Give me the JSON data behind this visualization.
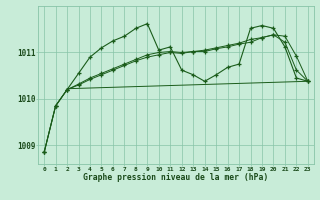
{
  "title": "Graphe pression niveau de la mer (hPa)",
  "bg_color": "#c8ecd8",
  "grid_color": "#88c4a8",
  "line_color": "#1a5c1a",
  "text_color": "#1a4a1a",
  "xlim": [
    -0.5,
    23.5
  ],
  "ylim": [
    1008.6,
    1012.0
  ],
  "yticks": [
    1009,
    1010,
    1011
  ],
  "xticks": [
    0,
    1,
    2,
    3,
    4,
    5,
    6,
    7,
    8,
    9,
    10,
    11,
    12,
    13,
    14,
    15,
    16,
    17,
    18,
    19,
    20,
    21,
    22,
    23
  ],
  "line1_x": [
    0,
    1,
    2,
    3,
    4,
    5,
    6,
    7,
    8,
    9,
    10,
    11,
    12,
    13,
    14,
    15,
    16,
    17,
    18,
    19,
    20,
    21,
    22,
    23
  ],
  "line1_y": [
    1008.85,
    1009.85,
    1010.2,
    1010.55,
    1010.9,
    1011.1,
    1011.25,
    1011.35,
    1011.52,
    1011.62,
    1011.05,
    1011.12,
    1010.62,
    1010.52,
    1010.38,
    1010.52,
    1010.68,
    1010.75,
    1011.52,
    1011.58,
    1011.52,
    1011.12,
    1010.45,
    1010.38
  ],
  "line2_x": [
    2,
    23
  ],
  "line2_y": [
    1010.22,
    1010.38
  ],
  "line3_x": [
    0,
    1,
    2,
    3,
    4,
    5,
    6,
    7,
    8,
    9,
    10,
    11,
    12,
    13,
    14,
    15,
    16,
    17,
    18,
    19,
    20,
    21,
    22,
    23
  ],
  "line3_y": [
    1008.85,
    1009.85,
    1010.2,
    1010.3,
    1010.42,
    1010.52,
    1010.62,
    1010.72,
    1010.82,
    1010.9,
    1010.95,
    1011.0,
    1010.98,
    1011.02,
    1011.05,
    1011.1,
    1011.15,
    1011.2,
    1011.28,
    1011.32,
    1011.38,
    1011.35,
    1010.92,
    1010.38
  ],
  "line4_x": [
    0,
    1,
    2,
    3,
    4,
    5,
    6,
    7,
    8,
    9,
    10,
    11,
    12,
    13,
    14,
    15,
    16,
    17,
    18,
    19,
    20,
    21,
    22,
    23
  ],
  "line4_y": [
    1008.85,
    1009.85,
    1010.2,
    1010.32,
    1010.45,
    1010.55,
    1010.65,
    1010.75,
    1010.85,
    1010.95,
    1011.0,
    1011.02,
    1011.0,
    1011.02,
    1011.02,
    1011.08,
    1011.12,
    1011.18,
    1011.22,
    1011.32,
    1011.38,
    1011.22,
    1010.62,
    1010.38
  ]
}
